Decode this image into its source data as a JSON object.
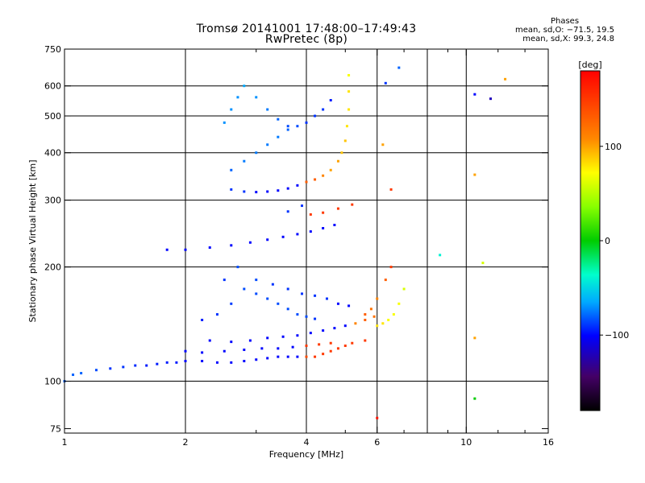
{
  "chart_data": {
    "type": "scatter",
    "title": "Tromsø 20141001 17:48:00–17:49:43",
    "subtitle": "RwPretec (8p)",
    "xlabel": "Frequency [MHz]",
    "ylabel": "Stationary phase Virtual Height [km]",
    "x_scale": "log",
    "y_scale": "log",
    "xlim": [
      1,
      16
    ],
    "ylim": [
      73,
      750
    ],
    "x_ticks": [
      1,
      2,
      4,
      6,
      10,
      16
    ],
    "x_tick_labels": [
      "1",
      "2",
      "4",
      "6",
      "10",
      "16"
    ],
    "x_minor_ticks": [
      3,
      5,
      7,
      8,
      9,
      12,
      14
    ],
    "y_ticks": [
      75,
      100,
      200,
      300,
      400,
      500,
      600,
      750
    ],
    "y_tick_labels": [
      "75",
      "100",
      "200",
      "300",
      "400",
      "500",
      "600",
      "750"
    ],
    "x_grid": [
      2,
      4,
      6,
      8,
      10
    ],
    "y_grid": [
      100,
      200,
      300,
      400,
      500,
      600
    ],
    "grid": true,
    "colorbar": {
      "label": "[deg]",
      "range": [
        -180,
        180
      ],
      "ticks": [
        100,
        0,
        -100
      ],
      "tick_labels": [
        "100",
        "0",
        "−100"
      ]
    },
    "phase_stats": {
      "title": "Phases",
      "o_line": "mean, sd,O: −71.5, 19.5",
      "x_line": "mean, sd,X:  99.3, 24.8"
    },
    "series": [
      {
        "values": [
          [
            1.0,
            100,
            -80
          ],
          [
            1.05,
            104,
            -80
          ],
          [
            1.1,
            105,
            -80
          ],
          [
            1.2,
            107,
            -85
          ],
          [
            1.3,
            108,
            -90
          ],
          [
            1.4,
            109,
            -90
          ],
          [
            1.5,
            110,
            -92
          ],
          [
            1.6,
            110,
            -95
          ],
          [
            1.7,
            111,
            -95
          ],
          [
            1.8,
            112,
            -95
          ],
          [
            1.9,
            112,
            -95
          ],
          [
            2.0,
            113,
            -100
          ],
          [
            2.2,
            113,
            -100
          ],
          [
            2.4,
            112,
            -100
          ],
          [
            2.6,
            112,
            -100
          ],
          [
            2.8,
            113,
            -100
          ],
          [
            3.0,
            114,
            -100
          ],
          [
            3.2,
            115,
            -100
          ],
          [
            3.4,
            116,
            -100
          ],
          [
            3.6,
            116,
            -100
          ],
          [
            3.8,
            116,
            -100
          ],
          [
            4.0,
            116,
            140
          ],
          [
            4.2,
            116,
            150
          ],
          [
            4.4,
            118,
            150
          ],
          [
            4.6,
            120,
            150
          ],
          [
            4.8,
            122,
            150
          ],
          [
            5.0,
            124,
            150
          ],
          [
            5.2,
            126,
            150
          ],
          [
            5.6,
            128,
            150
          ]
        ]
      },
      {
        "values": [
          [
            2.3,
            128,
            -100
          ],
          [
            2.6,
            127,
            -100
          ],
          [
            2.9,
            128,
            -100
          ],
          [
            3.2,
            130,
            -100
          ],
          [
            3.5,
            131,
            -100
          ],
          [
            3.8,
            132,
            -100
          ],
          [
            4.1,
            134,
            -100
          ],
          [
            4.4,
            136,
            -100
          ],
          [
            4.7,
            138,
            -100
          ],
          [
            5.0,
            140,
            -100
          ],
          [
            5.3,
            142,
            110
          ],
          [
            5.6,
            145,
            130
          ],
          [
            5.9,
            148,
            120
          ]
        ]
      },
      {
        "values": [
          [
            2.0,
            120,
            -100
          ],
          [
            2.2,
            119,
            -100
          ],
          [
            2.5,
            120,
            -100
          ],
          [
            2.8,
            121,
            -100
          ],
          [
            3.1,
            122,
            -100
          ],
          [
            3.4,
            122,
            -100
          ],
          [
            3.7,
            123,
            -100
          ],
          [
            4.0,
            124,
            150
          ],
          [
            4.3,
            125,
            150
          ],
          [
            4.6,
            126,
            150
          ]
        ]
      },
      {
        "values": [
          [
            2.2,
            145,
            -95
          ],
          [
            2.4,
            150,
            -90
          ],
          [
            2.6,
            160,
            -88
          ],
          [
            2.8,
            175,
            -85
          ],
          [
            3.0,
            170,
            -85
          ],
          [
            3.2,
            165,
            -85
          ],
          [
            3.4,
            160,
            -85
          ],
          [
            3.6,
            155,
            -85
          ],
          [
            3.8,
            150,
            -85
          ],
          [
            4.0,
            148,
            -85
          ],
          [
            4.2,
            146,
            -90
          ],
          [
            2.5,
            185,
            -90
          ],
          [
            2.7,
            200,
            -85
          ],
          [
            3.0,
            185,
            -85
          ],
          [
            3.3,
            180,
            -90
          ],
          [
            3.6,
            175,
            -90
          ],
          [
            3.9,
            170,
            -90
          ],
          [
            4.2,
            168,
            -90
          ],
          [
            4.5,
            165,
            -90
          ],
          [
            4.8,
            160,
            -100
          ],
          [
            5.1,
            158,
            -100
          ]
        ]
      },
      {
        "values": [
          [
            6.0,
            140,
            80
          ],
          [
            6.2,
            142,
            80
          ],
          [
            6.4,
            145,
            70
          ],
          [
            6.6,
            150,
            70
          ],
          [
            6.8,
            160,
            70
          ],
          [
            7.0,
            175,
            60
          ],
          [
            5.6,
            150,
            130
          ],
          [
            5.8,
            155,
            120
          ],
          [
            6.0,
            165,
            110
          ],
          [
            6.3,
            185,
            130
          ],
          [
            6.5,
            200,
            150
          ]
        ]
      },
      {
        "values": [
          [
            1.8,
            222,
            -100
          ],
          [
            2.0,
            222,
            -100
          ],
          [
            2.3,
            225,
            -100
          ],
          [
            2.6,
            228,
            -100
          ],
          [
            2.9,
            232,
            -100
          ],
          [
            3.2,
            236,
            -100
          ],
          [
            3.5,
            240,
            -100
          ],
          [
            3.8,
            244,
            -100
          ],
          [
            4.1,
            248,
            -100
          ],
          [
            4.4,
            253,
            -100
          ],
          [
            4.7,
            258,
            -100
          ],
          [
            3.6,
            280,
            -90
          ],
          [
            3.9,
            290,
            -90
          ],
          [
            4.1,
            275,
            150
          ],
          [
            4.4,
            278,
            150
          ],
          [
            4.8,
            285,
            150
          ],
          [
            5.2,
            292,
            150
          ]
        ]
      },
      {
        "values": [
          [
            2.6,
            320,
            -90
          ],
          [
            2.8,
            316,
            -90
          ],
          [
            3.0,
            315,
            -100
          ],
          [
            3.2,
            316,
            -100
          ],
          [
            3.4,
            318,
            -100
          ],
          [
            3.6,
            322,
            -100
          ],
          [
            3.8,
            328,
            -100
          ],
          [
            4.0,
            335,
            130
          ],
          [
            4.2,
            340,
            130
          ],
          [
            4.4,
            348,
            110
          ],
          [
            4.6,
            360,
            100
          ],
          [
            4.8,
            380,
            100
          ],
          [
            4.9,
            400,
            90
          ],
          [
            5.0,
            430,
            90
          ],
          [
            5.05,
            470,
            80
          ],
          [
            5.1,
            520,
            80
          ],
          [
            5.1,
            580,
            80
          ],
          [
            5.1,
            640,
            70
          ]
        ]
      },
      {
        "values": [
          [
            2.6,
            360,
            -80
          ],
          [
            2.8,
            380,
            -75
          ],
          [
            3.0,
            400,
            -75
          ],
          [
            3.2,
            420,
            -75
          ],
          [
            3.4,
            440,
            -75
          ],
          [
            3.6,
            460,
            -80
          ],
          [
            3.8,
            470,
            -85
          ],
          [
            4.0,
            480,
            -90
          ],
          [
            4.2,
            500,
            -90
          ],
          [
            4.4,
            520,
            -90
          ],
          [
            4.6,
            550,
            -95
          ],
          [
            2.5,
            480,
            -70
          ],
          [
            2.6,
            520,
            -70
          ],
          [
            2.7,
            560,
            -70
          ],
          [
            2.8,
            600,
            -65
          ],
          [
            3.0,
            560,
            -70
          ],
          [
            3.2,
            520,
            -75
          ],
          [
            3.4,
            490,
            -80
          ],
          [
            3.6,
            470,
            -85
          ]
        ]
      },
      {
        "values": [
          [
            6.2,
            420,
            100
          ],
          [
            6.5,
            320,
            150
          ],
          [
            6.3,
            610,
            -90
          ],
          [
            6.8,
            670,
            -80
          ],
          [
            10.5,
            570,
            -100
          ],
          [
            11.5,
            555,
            -120
          ],
          [
            12.5,
            625,
            100
          ],
          [
            10.5,
            350,
            100
          ],
          [
            11.0,
            205,
            60
          ],
          [
            10.5,
            130,
            100
          ],
          [
            10.5,
            90,
            0
          ],
          [
            6.0,
            80,
            170
          ],
          [
            8.6,
            215,
            -40
          ]
        ]
      }
    ]
  }
}
